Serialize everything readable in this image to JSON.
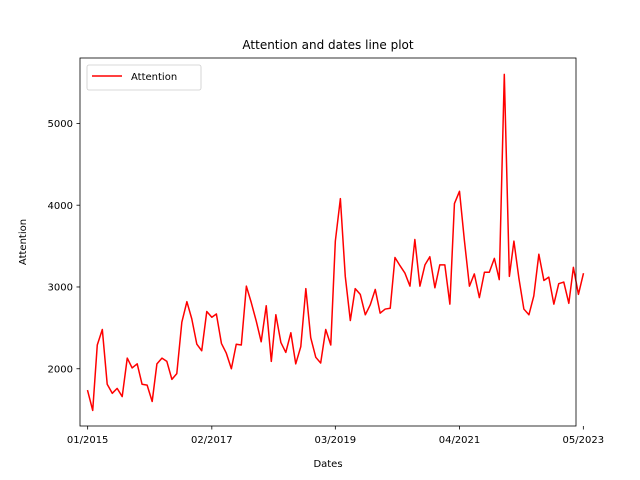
{
  "chart_data": {
    "type": "line",
    "title": "Attention and dates line plot",
    "xlabel": "Dates",
    "ylabel": "Attention",
    "grid": false,
    "legend_position": "top-left",
    "colors": {
      "series": "#ff0000"
    },
    "xlim": [
      "2014-11-15",
      "2023-03-17"
    ],
    "ylim": [
      1300,
      5800
    ],
    "x_ticks": [
      "2015-01-01",
      "2017-02-01",
      "2019-03-01",
      "2021-04-01",
      "2023-05-01"
    ],
    "x_tick_labels": [
      "01/2015",
      "02/2017",
      "03/2019",
      "04/2021",
      "05/2023"
    ],
    "y_ticks": [
      2000,
      3000,
      4000,
      5000
    ],
    "y_tick_labels": [
      "2000",
      "3000",
      "4000",
      "5000"
    ],
    "series": [
      {
        "name": "Attention",
        "x": [
          "2015-01-01",
          "2015-02-01",
          "2015-03-01",
          "2015-04-01",
          "2015-05-01",
          "2015-06-01",
          "2015-07-01",
          "2015-08-01",
          "2015-09-01",
          "2015-10-01",
          "2015-11-01",
          "2015-12-01",
          "2016-01-01",
          "2016-02-01",
          "2016-03-01",
          "2016-04-01",
          "2016-05-01",
          "2016-06-01",
          "2016-07-01",
          "2016-08-01",
          "2016-09-01",
          "2016-10-01",
          "2016-11-01",
          "2016-12-01",
          "2017-01-01",
          "2017-02-01",
          "2017-03-01",
          "2017-04-01",
          "2017-05-01",
          "2017-06-01",
          "2017-07-01",
          "2017-08-01",
          "2017-09-01",
          "2017-10-01",
          "2017-11-01",
          "2017-12-01",
          "2018-01-01",
          "2018-02-01",
          "2018-03-01",
          "2018-04-01",
          "2018-05-01",
          "2018-06-01",
          "2018-07-01",
          "2018-08-01",
          "2018-09-01",
          "2018-10-01",
          "2018-11-01",
          "2018-12-01",
          "2019-01-01",
          "2019-02-01",
          "2019-03-01",
          "2019-04-01",
          "2019-05-01",
          "2019-06-01",
          "2019-07-01",
          "2019-08-01",
          "2019-09-01",
          "2019-10-01",
          "2019-11-01",
          "2019-12-01",
          "2020-01-01",
          "2020-02-01",
          "2020-03-01",
          "2020-04-01",
          "2020-05-01",
          "2020-06-01",
          "2020-07-01",
          "2020-08-01",
          "2020-09-01",
          "2020-10-01",
          "2020-11-01",
          "2020-12-01",
          "2021-01-01",
          "2021-02-01",
          "2021-03-01",
          "2021-04-01",
          "2021-05-01",
          "2021-06-01",
          "2021-07-01",
          "2021-08-01",
          "2021-09-01",
          "2021-10-01",
          "2021-11-01",
          "2021-12-01",
          "2022-01-01",
          "2022-02-01",
          "2022-03-01",
          "2022-04-01",
          "2022-05-01",
          "2022-06-01",
          "2022-07-01",
          "2022-08-01",
          "2022-09-01",
          "2022-10-01",
          "2022-11-01",
          "2022-12-01",
          "2023-01-01",
          "2023-02-01",
          "2023-03-01",
          "2023-04-01",
          "2023-05-01"
        ],
        "y": [
          1730,
          1490,
          2290,
          2480,
          1810,
          1700,
          1760,
          1660,
          2130,
          2010,
          2060,
          1810,
          1800,
          1600,
          2060,
          2130,
          2090,
          1870,
          1940,
          2570,
          2820,
          2610,
          2300,
          2220,
          2700,
          2630,
          2670,
          2310,
          2190,
          2000,
          2300,
          2290,
          3010,
          2810,
          2580,
          2330,
          2770,
          2090,
          2660,
          2320,
          2200,
          2440,
          2060,
          2270,
          2980,
          2380,
          2140,
          2070,
          2480,
          2290,
          3560,
          4080,
          3130,
          2590,
          2980,
          2910,
          2660,
          2780,
          2970,
          2680,
          2730,
          2740,
          3360,
          3260,
          3170,
          3010,
          3580,
          3010,
          3270,
          3370,
          2990,
          3270,
          3270,
          2790,
          4020,
          4170,
          3570,
          3010,
          3160,
          2870,
          3180,
          3180,
          3350,
          3090,
          5600,
          3130,
          3560,
          3100,
          2730,
          2660,
          2890,
          3400,
          3080,
          3120,
          2790,
          3040,
          3060,
          2800,
          3240,
          2910,
          3160
        ]
      }
    ]
  }
}
